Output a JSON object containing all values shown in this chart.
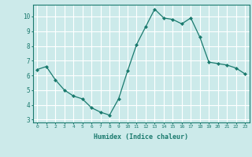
{
  "x": [
    0,
    1,
    2,
    3,
    4,
    5,
    6,
    7,
    8,
    9,
    10,
    11,
    12,
    13,
    14,
    15,
    16,
    17,
    18,
    19,
    20,
    21,
    22,
    23
  ],
  "y": [
    6.4,
    6.6,
    5.7,
    5.0,
    4.6,
    4.4,
    3.8,
    3.5,
    3.3,
    4.4,
    6.3,
    8.1,
    9.3,
    10.5,
    9.9,
    9.8,
    9.5,
    9.9,
    8.6,
    6.9,
    6.8,
    6.7,
    6.5,
    6.1
  ],
  "xlabel": "Humidex (Indice chaleur)",
  "ylim": [
    2.8,
    10.8
  ],
  "xlim": [
    -0.5,
    23.5
  ],
  "yticks": [
    3,
    4,
    5,
    6,
    7,
    8,
    9,
    10
  ],
  "xticks": [
    0,
    1,
    2,
    3,
    4,
    5,
    6,
    7,
    8,
    9,
    10,
    11,
    12,
    13,
    14,
    15,
    16,
    17,
    18,
    19,
    20,
    21,
    22,
    23
  ],
  "line_color": "#1a7a6e",
  "marker": "D",
  "marker_size": 2,
  "bg_color": "#cceaea",
  "grid_color": "#ffffff",
  "tick_label_color": "#1a7a6e",
  "label_color": "#1a7a6e",
  "font_family": "monospace"
}
